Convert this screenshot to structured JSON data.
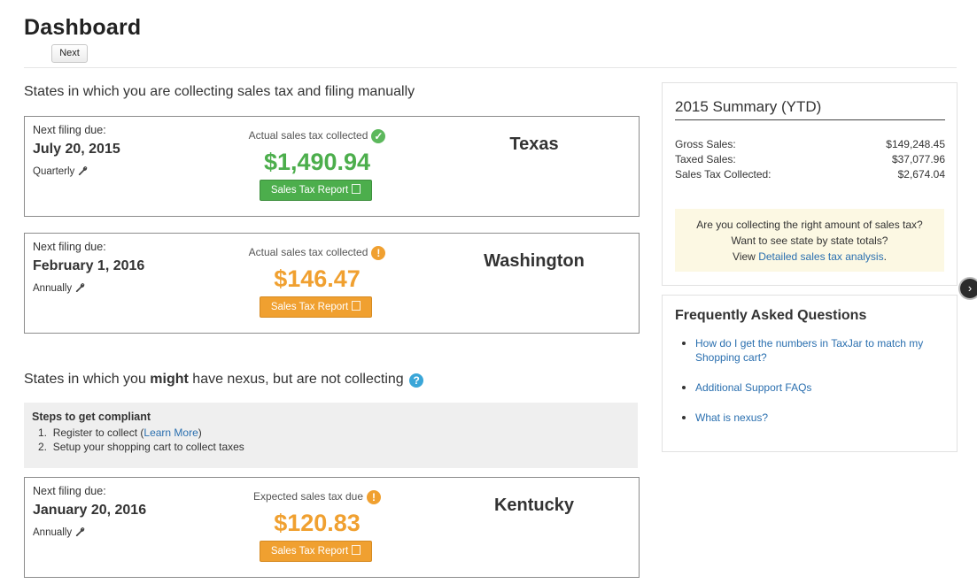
{
  "header": {
    "title": "Dashboard",
    "next_label": "Next"
  },
  "manual": {
    "title": "States in which you are collecting sales tax and filing manually",
    "cards": [
      {
        "label": "Next filing due:",
        "date": "July 20, 2015",
        "frequency": "Quarterly",
        "amount_label": "Actual sales tax collected",
        "amount": "$1,490.94",
        "state": "Texas",
        "status": "ok",
        "status_color": "#5cb85c",
        "amount_color": "#4cae4c",
        "report_label": "Sales Tax Report"
      },
      {
        "label": "Next filing due:",
        "date": "February 1, 2016",
        "frequency": "Annually",
        "amount_label": "Actual sales tax collected",
        "amount": "$146.47",
        "state": "Washington",
        "status": "warning",
        "status_color": "#f0a030",
        "amount_color": "#f0a030",
        "report_label": "Sales Tax Report"
      }
    ]
  },
  "nexus": {
    "title_pre": "States in which you ",
    "title_bold": "might",
    "title_post": " have nexus, but are not collecting",
    "steps_title": "Steps to get compliant",
    "step1_pre": "Register to collect (",
    "step1_link": "Learn More",
    "step1_post": ")",
    "step2": "Setup your shopping cart to collect taxes",
    "card": {
      "label": "Next filing due:",
      "date": "January 20, 2016",
      "frequency": "Annually",
      "amount_label": "Expected sales tax due",
      "amount": "$120.83",
      "state": "Kentucky",
      "status": "warning",
      "status_color": "#f0a030",
      "amount_color": "#f0a030",
      "report_label": "Sales Tax Report"
    }
  },
  "summary": {
    "title": "2015 Summary (YTD)",
    "rows": [
      {
        "label": "Gross Sales:",
        "value": "$149,248.45"
      },
      {
        "label": "Taxed Sales:",
        "value": "$37,077.96"
      },
      {
        "label": "Sales Tax Collected:",
        "value": "$2,674.04"
      }
    ],
    "tip_line1": "Are you collecting the right amount of sales tax?",
    "tip_line2": "Want to see state by state totals?",
    "tip_line3_pre": "View ",
    "tip_link": "Detailed sales tax analysis",
    "tip_line3_post": "."
  },
  "faq": {
    "title": "Frequently Asked Questions",
    "items": [
      "How do I get the numbers in TaxJar to match my Shopping cart?",
      "Additional Support FAQs",
      "What is nexus?"
    ]
  },
  "colors": {
    "ok": "#5cb85c",
    "warning": "#f0a030",
    "link": "#2a6faf",
    "tip_bg": "#fcf8e3"
  },
  "icons": {
    "ok": "check-circle-icon",
    "warning": "exclamation-circle-icon",
    "help": "question-circle-icon",
    "frequency": "wrench-icon",
    "report": "document-icon",
    "toggle": "chevron-right-icon"
  }
}
